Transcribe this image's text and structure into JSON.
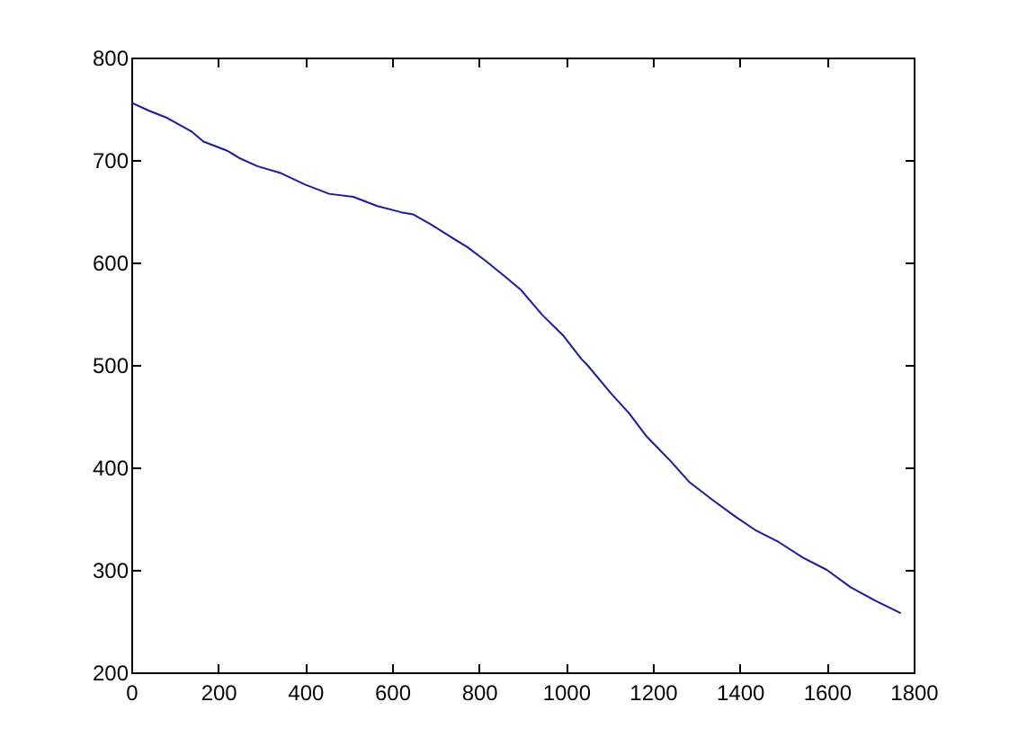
{
  "chart_data": {
    "type": "line",
    "x": [
      0,
      41,
      83,
      138,
      166,
      221,
      248,
      290,
      345,
      400,
      455,
      511,
      566,
      621,
      648,
      690,
      731,
      773,
      814,
      855,
      897,
      945,
      993,
      1035,
      1049,
      1104,
      1145,
      1186,
      1241,
      1283,
      1338,
      1393,
      1435,
      1490,
      1545,
      1600,
      1655,
      1711,
      1769
    ],
    "series": [
      {
        "color": "#1a1aa8",
        "values": [
          756,
          748,
          741,
          728,
          718,
          709,
          702,
          694,
          687,
          676,
          667,
          664,
          655,
          649,
          647,
          637,
          626,
          615,
          602,
          588,
          573,
          549,
          529,
          506,
          500,
          472,
          453,
          430,
          406,
          386,
          368,
          351,
          339,
          327,
          312,
          300,
          283,
          270,
          258
        ]
      }
    ],
    "xlim": [
      0,
      1800
    ],
    "xticks": [
      0,
      200,
      400,
      600,
      800,
      1000,
      1200,
      1400,
      1600,
      1800
    ],
    "ylim": [
      200,
      800
    ],
    "yticks": [
      200,
      300,
      400,
      500,
      600,
      700,
      800
    ],
    "grid": false,
    "marker": "none"
  }
}
